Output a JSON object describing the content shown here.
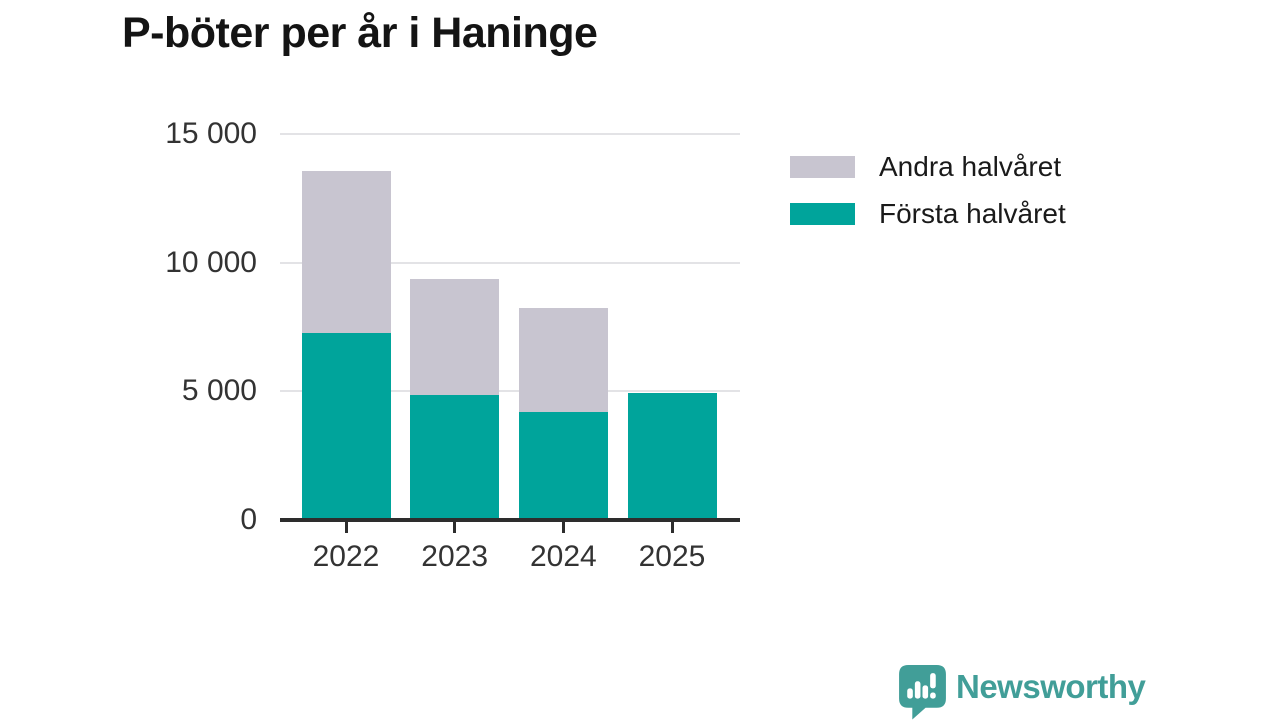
{
  "title": "P-böter per år i Haninge",
  "colors": {
    "first_half": "#00a49b",
    "second_half": "#c8c5d0",
    "gridline": "#e3e3e6",
    "axis": "#2d2d2d",
    "tick_label": "#333333",
    "title_text": "#141414",
    "logo": "#419e98"
  },
  "legend": [
    {
      "label": "Andra halvåret",
      "color": "#c8c5d0"
    },
    {
      "label": "Första halvåret",
      "color": "#00a49b"
    }
  ],
  "chart_data": {
    "type": "bar",
    "stacked": true,
    "title": "P-böter per år i Haninge",
    "categories": [
      "2022",
      "2023",
      "2024",
      "2025"
    ],
    "series": [
      {
        "name": "Första halvåret",
        "color": "#00a49b",
        "values": [
          7250,
          4850,
          4200,
          4950
        ]
      },
      {
        "name": "Andra halvåret",
        "color": "#c8c5d0",
        "values": [
          6300,
          4500,
          4050,
          0
        ]
      }
    ],
    "xlabel": "",
    "ylabel": "",
    "ylim": [
      0,
      15000
    ],
    "yticks": [
      0,
      5000,
      10000,
      15000
    ],
    "ytick_labels": [
      "0",
      "5 000",
      "10 000",
      "15 000"
    ],
    "grid": "horizontal",
    "legend_position": "right"
  },
  "branding": {
    "logo_text": "Newsworthy",
    "logo_icon": "newsworthy-speech-bubble-chart-icon"
  }
}
